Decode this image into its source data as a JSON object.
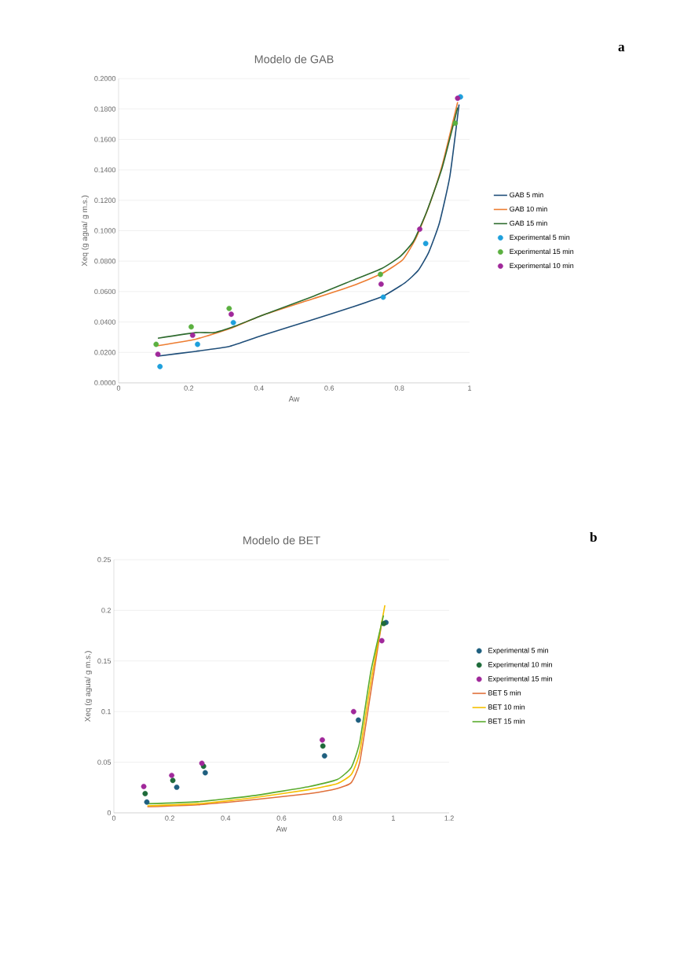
{
  "chart_data": [
    {
      "type": "line",
      "title": "Modelo de GAB",
      "xlabel": "Aw",
      "ylabel": "Xeq  (g agua/ g m.s.)",
      "annotations": [
        "a"
      ],
      "xlim": [
        0,
        1
      ],
      "xticks": [
        0,
        0.2,
        0.4,
        0.6,
        0.8,
        1
      ],
      "ylim": [
        0,
        0.2
      ],
      "yticks": [
        {
          "value": 0,
          "label": "0.0000"
        },
        {
          "value": 0.02,
          "label": "0.0200"
        },
        {
          "value": 0.04,
          "label": "0.0400"
        },
        {
          "value": 0.06,
          "label": "0.0600"
        },
        {
          "value": 0.08,
          "label": "0.0800"
        },
        {
          "value": 0.1,
          "label": "0.1000"
        },
        {
          "value": 0.12,
          "label": "0.1200"
        },
        {
          "value": 0.14,
          "label": "0.1400"
        },
        {
          "value": 0.16,
          "label": "0.1600"
        },
        {
          "value": 0.18,
          "label": "0.1800"
        },
        {
          "value": 0.2,
          "label": "0.2000"
        }
      ],
      "grid": "y",
      "legend": "right",
      "series": [
        {
          "name": "GAB 5 min",
          "color": "#1f4e79",
          "x": [
            0.112,
            0.22,
            0.317,
            0.407,
            0.556,
            0.668,
            0.754,
            0.817,
            0.854,
            0.884,
            0.914,
            0.944,
            0.97
          ],
          "values": [
            0.0176,
            0.0207,
            0.024,
            0.031,
            0.0417,
            0.05,
            0.057,
            0.066,
            0.074,
            0.086,
            0.105,
            0.136,
            0.183
          ]
        },
        {
          "name": "GAB 10 min",
          "color": "#ed7d31",
          "x": [
            0.112,
            0.22,
            0.317,
            0.407,
            0.556,
            0.668,
            0.75,
            0.81,
            0.847,
            0.884,
            0.922,
            0.966
          ],
          "values": [
            0.0244,
            0.0287,
            0.0356,
            0.0442,
            0.0554,
            0.064,
            0.0718,
            0.081,
            0.095,
            0.116,
            0.143,
            0.1845
          ]
        },
        {
          "name": "GAB 15 min",
          "color": "#2e6b2e",
          "x": [
            0.112,
            0.22,
            0.272,
            0.332,
            0.407,
            0.556,
            0.668,
            0.75,
            0.802,
            0.84,
            0.877,
            0.922,
            0.966
          ],
          "values": [
            0.0293,
            0.033,
            0.033,
            0.0373,
            0.0442,
            0.057,
            0.0675,
            0.0752,
            0.083,
            0.093,
            0.112,
            0.1415,
            0.181
          ]
        },
        {
          "name": "Experimental 5 min",
          "type": "scatter",
          "color": "#1ea0dc",
          "x": [
            0.118,
            0.225,
            0.327,
            0.754,
            0.875,
            0.974
          ],
          "values": [
            0.0107,
            0.0253,
            0.0396,
            0.0563,
            0.0916,
            0.188
          ]
        },
        {
          "name": "Experimental 15 min",
          "type": "scatter",
          "color": "#5bb040",
          "x": [
            0.107,
            0.207,
            0.315,
            0.746,
            0.959
          ],
          "values": [
            0.0253,
            0.0368,
            0.0489,
            0.0713,
            0.1707
          ]
        },
        {
          "name": "Experimental 10 min",
          "type": "scatter",
          "color": "#a0289a",
          "x": [
            0.112,
            0.211,
            0.321,
            0.748,
            0.858,
            0.966
          ],
          "values": [
            0.0188,
            0.0313,
            0.0451,
            0.0649,
            0.101,
            0.1871
          ]
        }
      ]
    },
    {
      "type": "line",
      "title": "Modelo de BET",
      "xlabel": "Aw",
      "ylabel": "Xeq  (g agua/ g m.s.)",
      "annotations": [
        "b"
      ],
      "xlim": [
        0,
        1.2
      ],
      "xticks": [
        0,
        0.2,
        0.4,
        0.6,
        0.8,
        1,
        1.2
      ],
      "ylim": [
        0,
        0.25
      ],
      "yticks": [
        0,
        0.05,
        0.1,
        0.15,
        0.2,
        0.25
      ],
      "grid": "y",
      "legend": "right",
      "series": [
        {
          "name": "Experimental 5 min",
          "type": "scatter",
          "color": "#1f5f7f",
          "x": [
            0.118,
            0.225,
            0.327,
            0.754,
            0.875,
            0.974
          ],
          "values": [
            0.0107,
            0.0253,
            0.0396,
            0.0563,
            0.0916,
            0.188
          ]
        },
        {
          "name": "Experimental 10 min",
          "type": "scatter",
          "color": "#1e6b3a",
          "x": [
            0.112,
            0.211,
            0.321,
            0.748,
            0.966
          ],
          "values": [
            0.019,
            0.032,
            0.046,
            0.066,
            0.187
          ]
        },
        {
          "name": "Experimental 15 min",
          "type": "scatter",
          "color": "#a0289a",
          "x": [
            0.107,
            0.207,
            0.315,
            0.746,
            0.858,
            0.959
          ],
          "values": [
            0.026,
            0.037,
            0.049,
            0.072,
            0.1,
            0.17
          ]
        },
        {
          "name": "BET 5 min",
          "color": "#e0703a",
          "x": [
            0.12,
            0.3,
            0.5,
            0.7,
            0.8,
            0.85,
            0.88,
            0.92,
            0.96
          ],
          "values": [
            0.006,
            0.008,
            0.013,
            0.019,
            0.024,
            0.03,
            0.05,
            0.12,
            0.19
          ]
        },
        {
          "name": "BET 10 min",
          "color": "#f5c000",
          "x": [
            0.12,
            0.3,
            0.5,
            0.7,
            0.8,
            0.85,
            0.88,
            0.92,
            0.97
          ],
          "values": [
            0.007,
            0.009,
            0.015,
            0.023,
            0.029,
            0.038,
            0.06,
            0.13,
            0.205
          ]
        },
        {
          "name": "BET 15 min",
          "color": "#5aab2e",
          "x": [
            0.12,
            0.3,
            0.5,
            0.7,
            0.8,
            0.85,
            0.88,
            0.92,
            0.965
          ],
          "values": [
            0.009,
            0.011,
            0.017,
            0.026,
            0.033,
            0.045,
            0.07,
            0.14,
            0.195
          ]
        }
      ]
    }
  ]
}
